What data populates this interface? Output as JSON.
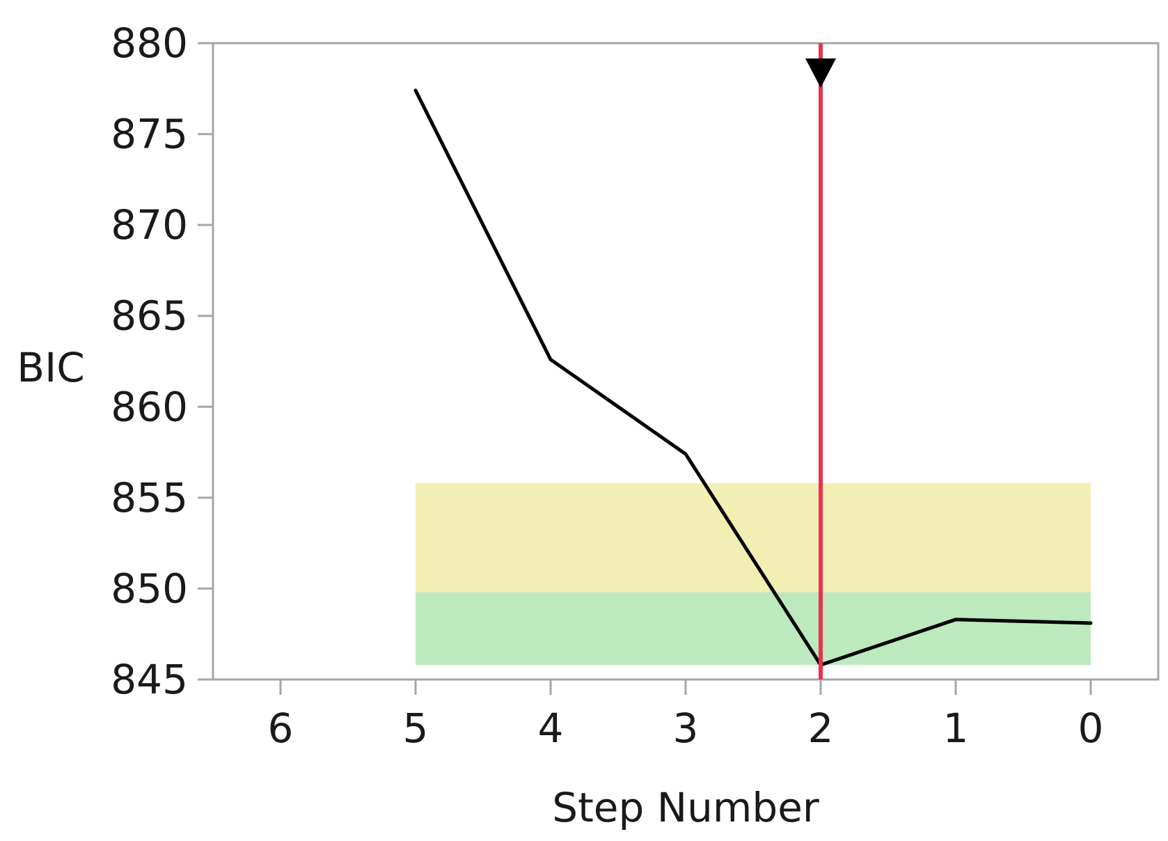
{
  "chart_data": {
    "type": "line",
    "xlabel": "Step Number",
    "ylabel": "BIC",
    "x_reversed": true,
    "xlim": [
      6.5,
      -0.5
    ],
    "ylim": [
      845,
      880
    ],
    "x_ticks": [
      "6",
      "5",
      "4",
      "3",
      "2",
      "1",
      "0"
    ],
    "y_ticks": [
      "845",
      "850",
      "855",
      "860",
      "865",
      "870",
      "875",
      "880"
    ],
    "series": [
      {
        "x": [
          5,
          4,
          3,
          2,
          1,
          0
        ],
        "y": [
          877.4,
          862.6,
          857.4,
          845.8,
          848.3,
          848.1
        ],
        "color": "#000000"
      }
    ],
    "bands": [
      {
        "y0": 845.8,
        "y1": 855.8,
        "x0": 5,
        "x1": 0,
        "color": "#f1efb4"
      },
      {
        "y0": 845.8,
        "y1": 849.8,
        "x0": 5,
        "x1": 0,
        "color": "#bde9bf"
      }
    ],
    "selected_step": {
      "x": 2,
      "color": "#e8344e",
      "marker_color": "#000000"
    },
    "grid": false
  }
}
